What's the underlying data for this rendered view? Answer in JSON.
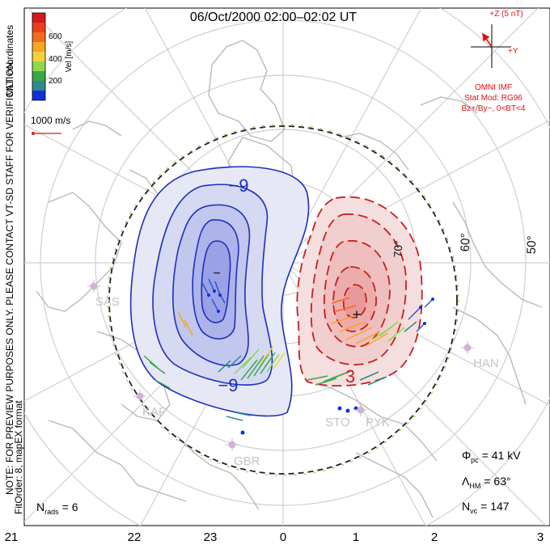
{
  "title": "06/Oct/2000 02:00–02:02 UT",
  "colorbar": {
    "ticks": [
      "600",
      "400",
      "200"
    ],
    "label": "Vel [m/s]",
    "colors": [
      "#d41a1a",
      "#f26a1c",
      "#f5a623",
      "#f6d23a",
      "#8fd84a",
      "#3aa64a",
      "#2f8a8a",
      "#2a5ad0",
      "#1030e0"
    ]
  },
  "coord_label": "MLT coordinates",
  "scale_vector": "1000 m/s",
  "note": "NOTE: FOR PREVIEW PURPOSES ONLY. PLEASE CONTACT VT-SD STAFF FOR VERIFICATION.",
  "fit_order": "FitOrder: 8, mapEX format",
  "imf": {
    "z_label": "+Z (5 nT)",
    "y_label": "+Y",
    "source": "OMNI IMF",
    "model_line1": "Stat Mod: RG96",
    "model_line2": "Bz+/By−, 0<BT<4"
  },
  "latitude_labels": [
    "70°",
    "60°",
    "50°"
  ],
  "mlt_labels": [
    "21",
    "22",
    "23",
    "0",
    "1",
    "2",
    "3"
  ],
  "stations": [
    "SAS",
    "KAP",
    "GBR",
    "STO",
    "PYK",
    "HAN"
  ],
  "contour_labels": {
    "neg_top": "−9",
    "neg_bottom": "−9",
    "pos": "3"
  },
  "stats": {
    "phi_pc": "Φpc = 41 kV",
    "phi_symbol": "Φ",
    "phi_sub": "pc",
    "phi_value": "= 41 kV",
    "lambda_symbol": "Λ",
    "lambda_sub": "HM",
    "lambda_value": "= 63°",
    "nvc_symbol": "N",
    "nvc_sub": "vc",
    "nvc_value": "= 147",
    "nrads_symbol": "N",
    "nrads_sub": "rads",
    "nrads_value": "= 6"
  },
  "colors": {
    "negative_cell": "#1c2fbf",
    "positive_cell": "#c81e1e",
    "boundary": "#222222",
    "imf_red": "#e01010",
    "grid": "#c8c8c8"
  }
}
